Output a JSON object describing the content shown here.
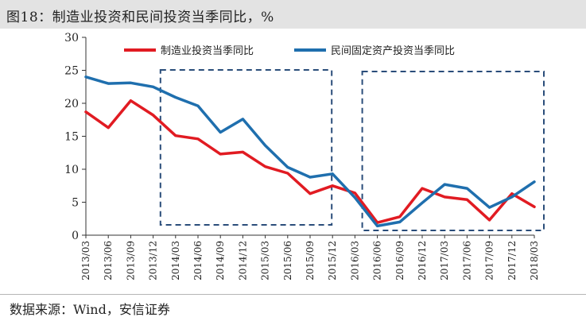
{
  "figure": {
    "title": "图18：制造业投资和民间投资当季同比，%",
    "source": "数据来源：Wind，安信证券"
  },
  "chart_data": {
    "type": "line",
    "x": [
      "2013/03",
      "2013/06",
      "2013/09",
      "2013/12",
      "2014/03",
      "2014/06",
      "2014/09",
      "2014/12",
      "2015/03",
      "2015/06",
      "2015/09",
      "2015/12",
      "2016/03",
      "2016/06",
      "2016/09",
      "2016/12",
      "2017/03",
      "2017/06",
      "2017/09",
      "2017/12",
      "2018/03"
    ],
    "series": [
      {
        "name": "制造业投资当季同比",
        "color": "#e11b22",
        "values": [
          18.7,
          16.3,
          20.4,
          18.2,
          15.1,
          14.6,
          12.3,
          12.6,
          10.4,
          9.4,
          6.3,
          7.5,
          6.4,
          1.9,
          2.8,
          7.1,
          5.8,
          5.4,
          2.3,
          6.3,
          4.3
        ]
      },
      {
        "name": "民间固定资产投资当季同比",
        "color": "#1f6fae",
        "values": [
          24.0,
          23.0,
          23.1,
          22.5,
          20.9,
          19.6,
          15.6,
          17.6,
          13.6,
          10.3,
          8.8,
          9.3,
          5.7,
          1.4,
          2.0,
          4.9,
          7.7,
          7.1,
          4.2,
          5.8,
          8.1
        ]
      }
    ],
    "ylim": [
      0,
      30
    ],
    "yticks": [
      0,
      5,
      10,
      15,
      20,
      25,
      30
    ],
    "legend_position": "top",
    "annotations": [
      {
        "shape": "dashed-box",
        "x_from": "2014/03",
        "x_to": "2015/12"
      },
      {
        "shape": "dashed-box",
        "x_from": "2016/06",
        "x_to": "2018/03"
      }
    ],
    "box_color": "#2a4d7a",
    "grid": false
  }
}
